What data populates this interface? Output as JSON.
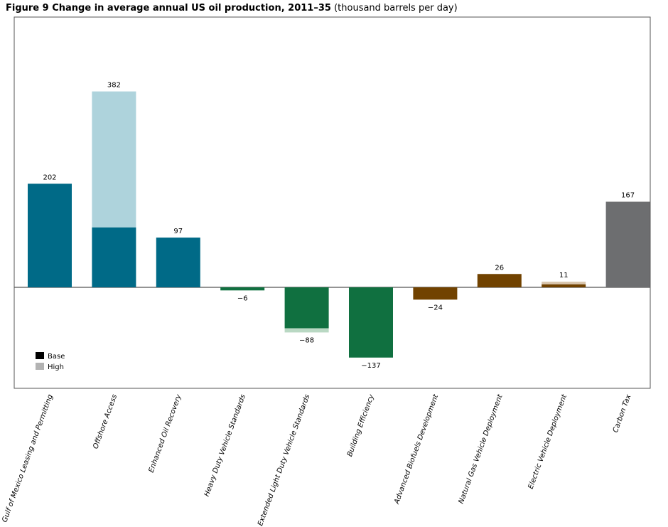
{
  "chart_data": {
    "type": "bar",
    "title_bold": "Figure 9    Change in average annual US oil production, 2011–35",
    "title_units": "(thousand barrels per day)",
    "categories": [
      "Gulf of Mexico Leasing and Permitting",
      "Offshore Access",
      "Enhanced Oil Recovery",
      "Heavy Duty Vehicle Standards",
      "Extended Light Duty Vehicle Standards",
      "Building Efficiency",
      "Advanced Biofuels Development",
      "Natural Gas Vehicle Deployment",
      "Electric Vehicle Deployment",
      "Carbon Tax"
    ],
    "series": [
      {
        "name": "Base",
        "values": [
          202,
          117,
          97,
          -6,
          -80,
          -137,
          -24,
          26,
          6,
          167
        ]
      },
      {
        "name": "High",
        "values": [
          202,
          382,
          97,
          -6,
          -88,
          -137,
          -24,
          26,
          11,
          167
        ]
      }
    ],
    "labels": [
      "202",
      "382",
      "97",
      "−6",
      "−88",
      "−137",
      "−24",
      "26",
      "11",
      "167"
    ],
    "colors": [
      "#006a87",
      "#006a87",
      "#006a87",
      "#107040",
      "#107040",
      "#107040",
      "#714200",
      "#714200",
      "#714200",
      "#6d6e70"
    ],
    "light_colors": [
      "#aed3dc",
      "#aed3dc",
      "#aed3dc",
      "#b9d8c3",
      "#b9d8c3",
      "#b9d8c3",
      "#d9c6ad",
      "#d9c6ad",
      "#d9c6ad",
      "#c8c8c8"
    ],
    "legend": {
      "position": "bottom-left",
      "entries": [
        "Base",
        "High"
      ],
      "colors": [
        "#000000",
        "#b3b3b3"
      ]
    },
    "ylim": [
      -200,
      530
    ],
    "grid": false
  }
}
